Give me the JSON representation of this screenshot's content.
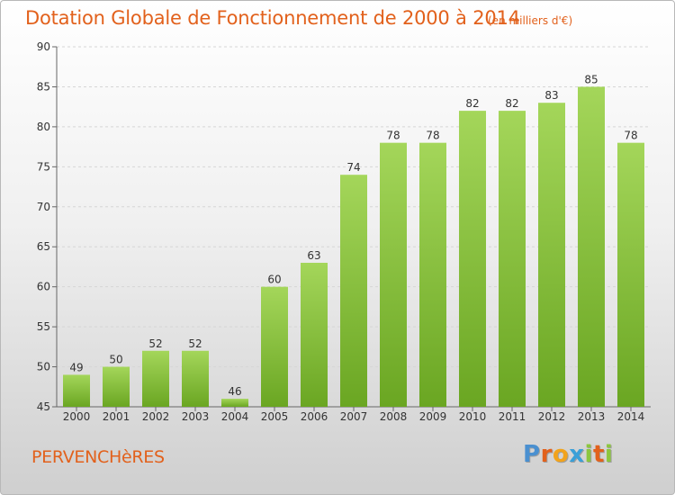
{
  "header": {
    "title": "Dotation Globale de Fonctionnement de 2000 à 2014",
    "subtitle": "(en milliers d'€)"
  },
  "footer": {
    "commune": "PERVENCHèRES",
    "logo_letters": [
      {
        "char": "P",
        "color": "#4a90d0"
      },
      {
        "char": "r",
        "color": "#e2611c"
      },
      {
        "char": "o",
        "color": "#f2a31b"
      },
      {
        "char": "x",
        "color": "#3aa0d8"
      },
      {
        "char": "i",
        "color": "#8cc63f"
      },
      {
        "char": "t",
        "color": "#e2611c"
      },
      {
        "char": "i",
        "color": "#8cc63f"
      }
    ]
  },
  "colors": {
    "bar_light": "#a4d65a",
    "bar_dark": "#6aa622",
    "accent": "#e2611c"
  },
  "chart_data": {
    "type": "bar",
    "categories": [
      "2000",
      "2001",
      "2002",
      "2003",
      "2004",
      "2005",
      "2006",
      "2007",
      "2008",
      "2009",
      "2010",
      "2011",
      "2012",
      "2013",
      "2014"
    ],
    "values": [
      49,
      50,
      52,
      52,
      46,
      60,
      63,
      74,
      78,
      78,
      82,
      82,
      83,
      85,
      78
    ],
    "title": "Dotation Globale de Fonctionnement de 2000 à 2014",
    "subtitle": "(en milliers d'€)",
    "xlabel": "",
    "ylabel": "",
    "ylim": [
      45,
      90
    ],
    "yticks": [
      45,
      50,
      55,
      60,
      65,
      70,
      75,
      80,
      85,
      90
    ],
    "grid": true,
    "data_labels": true
  }
}
